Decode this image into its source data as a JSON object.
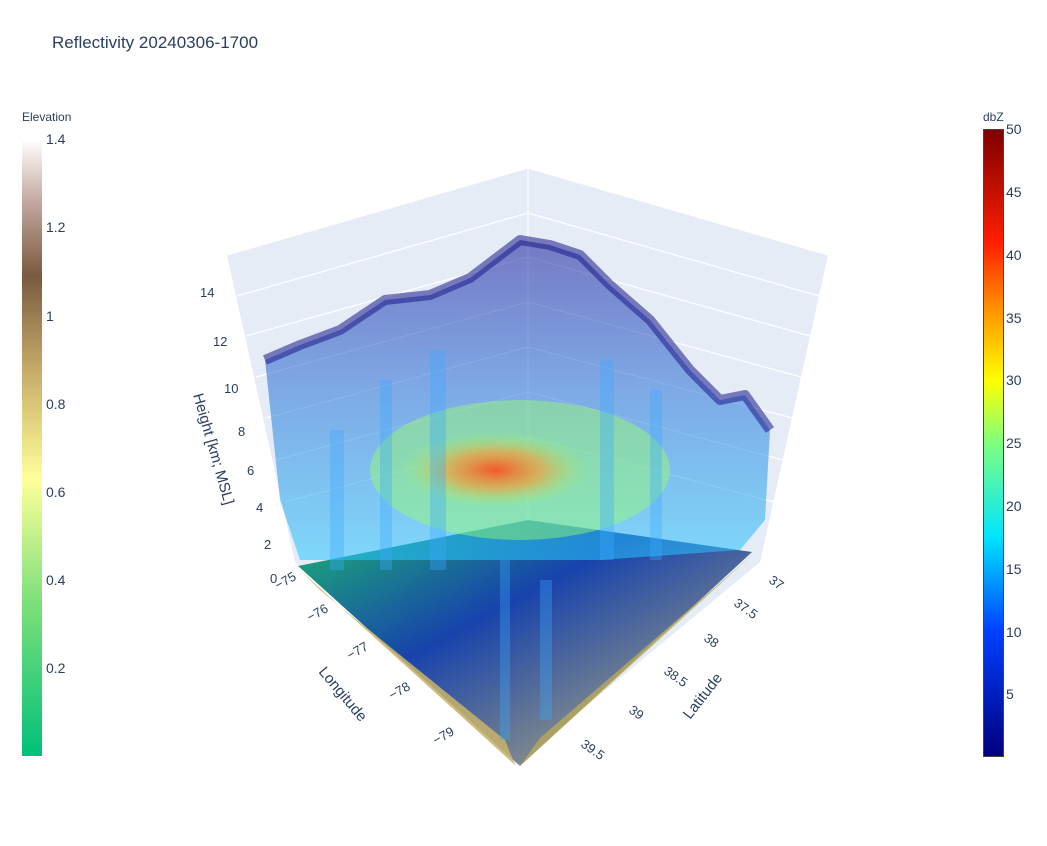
{
  "title": "Reflectivity 20240306-1700",
  "chart_data": {
    "type": "surface-3d",
    "title": "Reflectivity 20240306-1700",
    "axes": {
      "x": {
        "label": "Longitude",
        "ticks": [
          "−75",
          "−76",
          "−77",
          "−78",
          "−79"
        ]
      },
      "y": {
        "label": "Latitude",
        "ticks": [
          "37",
          "37.5",
          "38",
          "38.5",
          "39",
          "39.5"
        ]
      },
      "z": {
        "label": "Height [km; MSL]",
        "ticks": [
          "0",
          "2",
          "4",
          "6",
          "8",
          "10",
          "12",
          "14"
        ],
        "range": [
          0,
          14
        ]
      }
    },
    "elevation_colorbar": {
      "title": "Elevation",
      "ticks": [
        "0.2",
        "0.4",
        "0.6",
        "0.8",
        "1",
        "1.2",
        "1.4"
      ],
      "colors": {
        "low": "#00c07a",
        "mid": "#ffff9a",
        "upper": "#7a5a40",
        "high": "#ffffff"
      }
    },
    "reflectivity_colorbar": {
      "title": "dbZ",
      "ticks": [
        "5",
        "10",
        "15",
        "20",
        "25",
        "30",
        "35",
        "40",
        "45",
        "50"
      ],
      "colors": {
        "low": "#00007f",
        "cyan": "#00e5ff",
        "yellow": "#ffff00",
        "red": "#ff1e00",
        "high": "#7f0000"
      }
    }
  }
}
